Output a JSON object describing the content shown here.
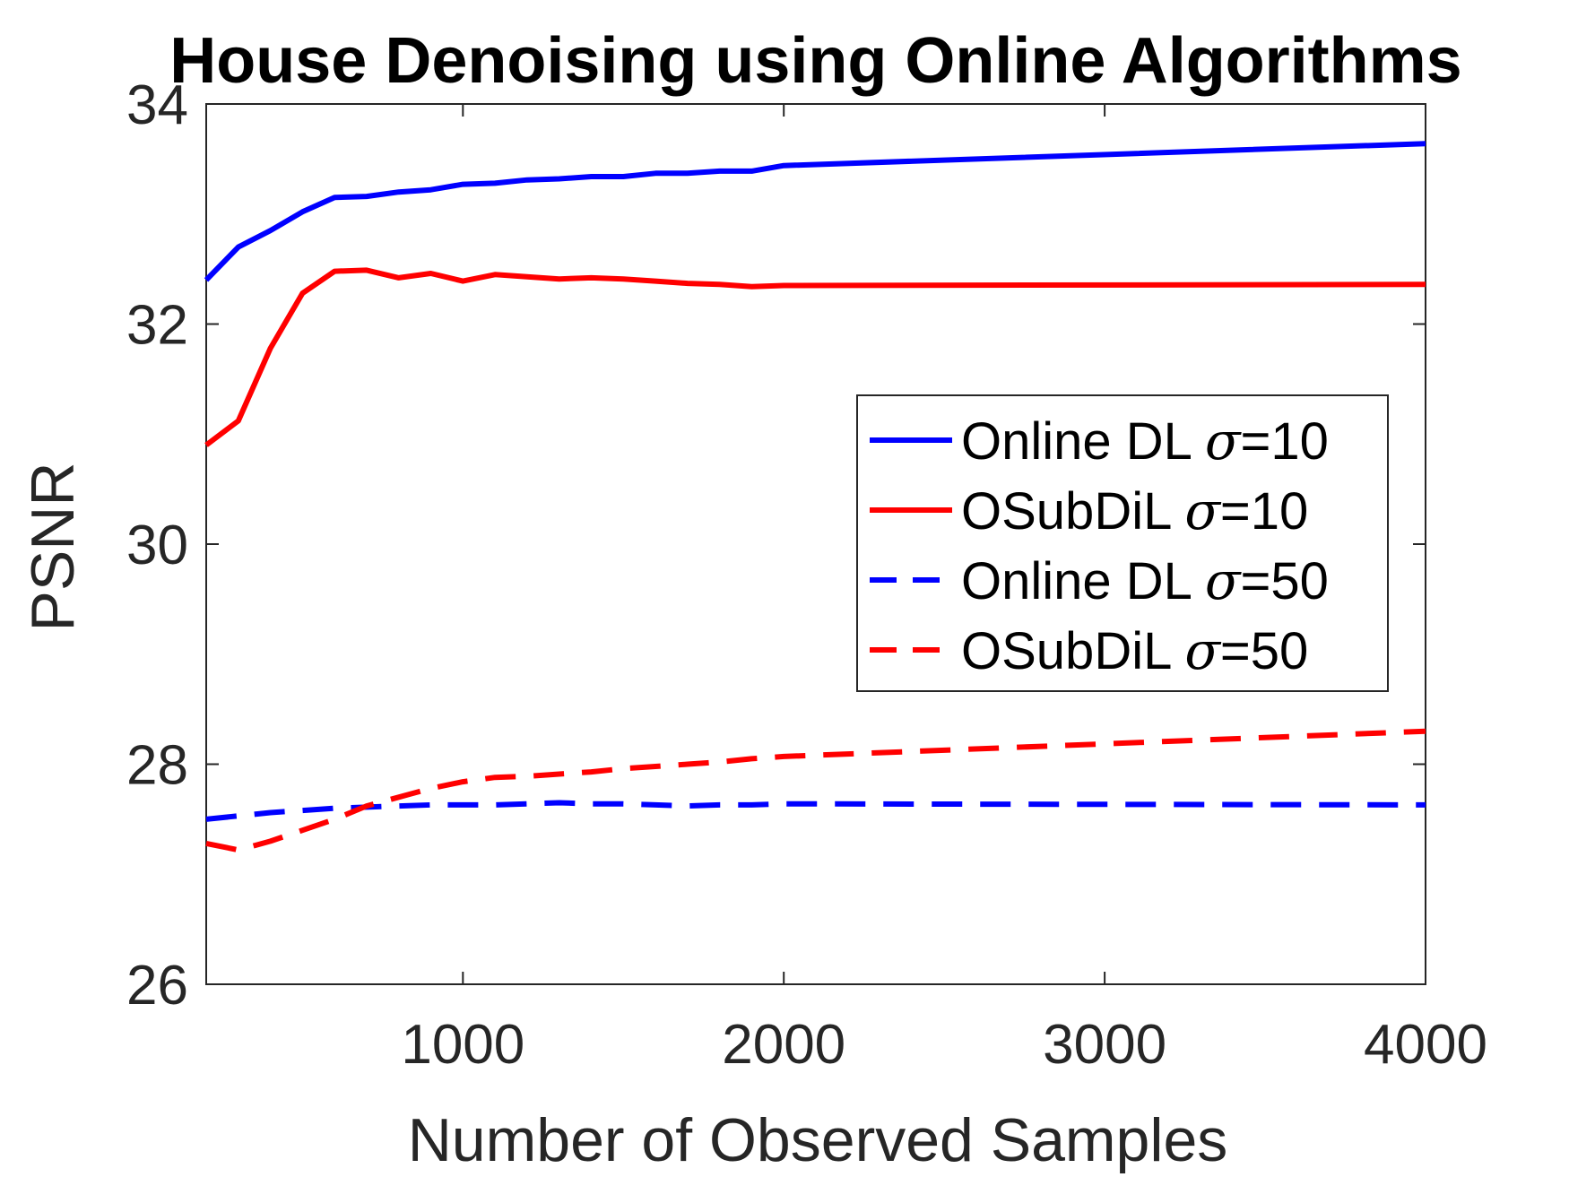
{
  "chart_data": {
    "type": "line",
    "title": "House Denoising using Online Algorithms",
    "xlabel": "Number of Observed Samples",
    "ylabel": "PSNR",
    "xlim": [
      200,
      4000
    ],
    "ylim": [
      26,
      34
    ],
    "xticks": [
      1000,
      2000,
      3000,
      4000
    ],
    "yticks": [
      26,
      28,
      30,
      32,
      34
    ],
    "xtick_labels": [
      "1000",
      "2000",
      "3000",
      "4000"
    ],
    "ytick_labels": [
      "26",
      "28",
      "30",
      "32",
      "34"
    ],
    "grid": false,
    "legend_position": "center-right",
    "series": [
      {
        "name": "Online DL σ=10",
        "name_parts": [
          "Online DL ",
          "σ",
          "=10"
        ],
        "color": "#0000ff",
        "style": "solid",
        "x": [
          200,
          300,
          400,
          500,
          600,
          700,
          800,
          900,
          1000,
          1100,
          1200,
          1300,
          1400,
          1500,
          1600,
          1700,
          1800,
          1900,
          2000,
          4000
        ],
        "y": [
          32.4,
          32.7,
          32.85,
          33.02,
          33.15,
          33.16,
          33.2,
          33.22,
          33.27,
          33.28,
          33.31,
          33.32,
          33.34,
          33.34,
          33.37,
          33.37,
          33.39,
          33.39,
          33.44,
          33.64
        ]
      },
      {
        "name": "OSubDiL σ=10",
        "name_parts": [
          "OSubDiL ",
          "σ",
          "=10"
        ],
        "color": "#ff0000",
        "style": "solid",
        "x": [
          200,
          300,
          400,
          500,
          600,
          700,
          800,
          900,
          1000,
          1100,
          1200,
          1300,
          1400,
          1500,
          1600,
          1700,
          1800,
          1900,
          2000,
          4000
        ],
        "y": [
          30.9,
          31.12,
          31.78,
          32.28,
          32.48,
          32.49,
          32.42,
          32.46,
          32.39,
          32.45,
          32.43,
          32.41,
          32.42,
          32.41,
          32.39,
          32.37,
          32.36,
          32.34,
          32.35,
          32.36
        ]
      },
      {
        "name": "Online DL σ=50",
        "name_parts": [
          "Online DL ",
          "σ",
          "=50"
        ],
        "color": "#0000ff",
        "style": "dashed",
        "x": [
          200,
          300,
          400,
          500,
          600,
          700,
          800,
          900,
          1000,
          1100,
          1200,
          1300,
          1400,
          1500,
          1600,
          1700,
          1800,
          1900,
          2000,
          4000
        ],
        "y": [
          27.5,
          27.53,
          27.56,
          27.58,
          27.6,
          27.61,
          27.62,
          27.63,
          27.63,
          27.63,
          27.64,
          27.65,
          27.64,
          27.64,
          27.63,
          27.62,
          27.63,
          27.63,
          27.64,
          27.63
        ]
      },
      {
        "name": "OSubDiL σ=50",
        "name_parts": [
          "OSubDiL ",
          "σ",
          "=50"
        ],
        "color": "#ff0000",
        "style": "dashed",
        "x": [
          200,
          300,
          400,
          500,
          600,
          700,
          800,
          900,
          1000,
          1100,
          1200,
          1300,
          1400,
          1500,
          1600,
          1700,
          1800,
          1900,
          2000,
          4000
        ],
        "y": [
          27.28,
          27.22,
          27.3,
          27.4,
          27.5,
          27.62,
          27.7,
          27.78,
          27.84,
          27.88,
          27.89,
          27.91,
          27.93,
          27.96,
          27.98,
          28.0,
          28.02,
          28.05,
          28.07,
          28.3
        ]
      }
    ]
  }
}
